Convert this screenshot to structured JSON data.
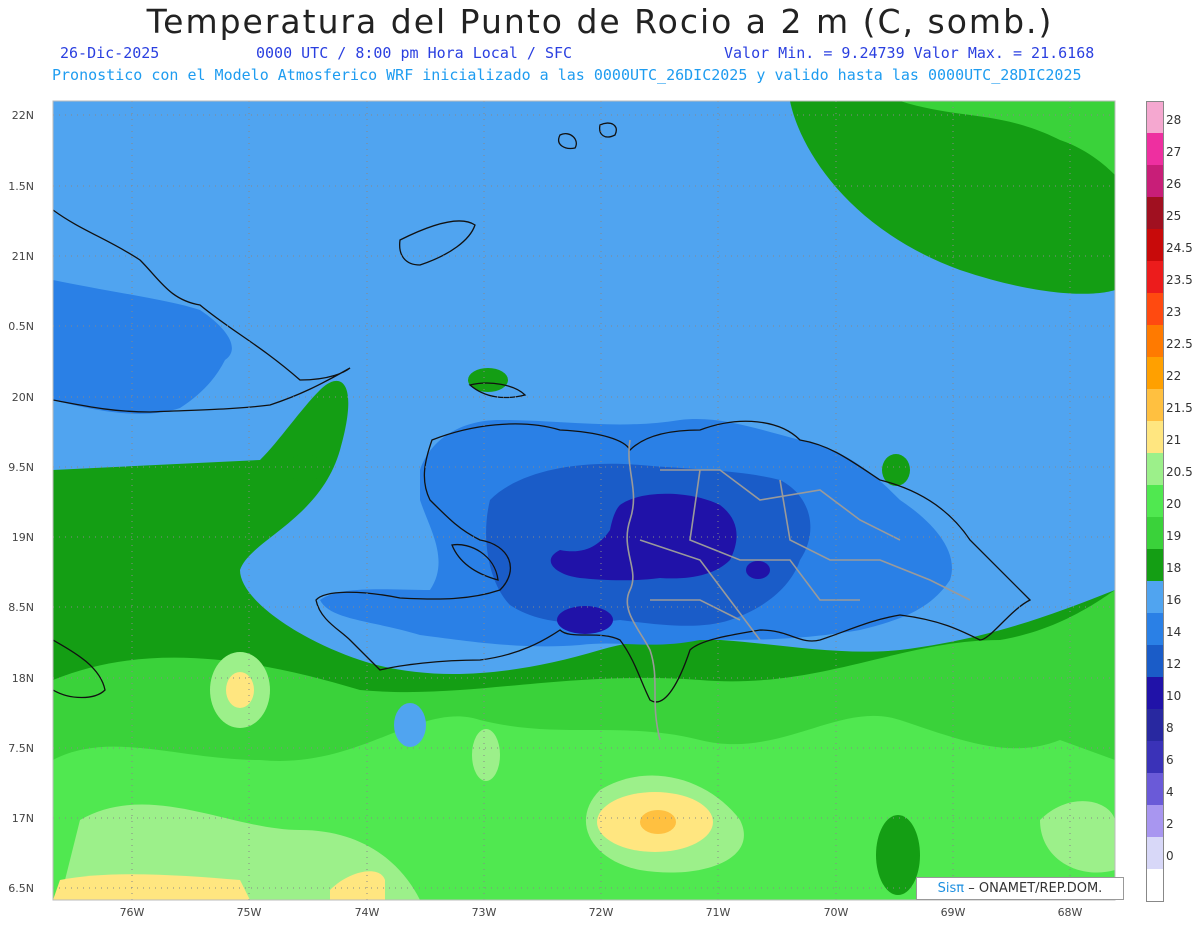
{
  "header": {
    "title": "Temperatura del Punto de Rocio a 2 m (C, somb.)",
    "date": "26-Dic-2025",
    "time": "0000 UTC / 8:00 pm Hora Local / SFC",
    "minmax": "Valor Min. = 9.24739  Valor Max. = 21.6168",
    "forecast": "Pronostico con el Modelo Atmosferico WRF inicializado a las 0000UTC_26DIC2025 y valido hasta las  0000UTC_28DIC2025"
  },
  "axes": {
    "lat_labels": [
      "22N",
      "1.5N",
      "21N",
      "0.5N",
      "20N",
      "9.5N",
      "19N",
      "8.5N",
      "18N",
      "7.5N",
      "17N",
      "6.5N"
    ],
    "lon_labels": [
      "76W",
      "75W",
      "74W",
      "73W",
      "72W",
      "71W",
      "70W",
      "69W",
      "68W"
    ]
  },
  "colorbar": {
    "levels": [
      {
        "label": "28",
        "color": "#f5a8d0"
      },
      {
        "label": "27",
        "color": "#ee2fa0"
      },
      {
        "label": "26",
        "color": "#c81e78"
      },
      {
        "label": "25",
        "color": "#a01020"
      },
      {
        "label": "24.5",
        "color": "#c80a0a"
      },
      {
        "label": "23.5",
        "color": "#ec1c1c"
      },
      {
        "label": "23",
        "color": "#ff4a10"
      },
      {
        "label": "22.5",
        "color": "#ff7a00"
      },
      {
        "label": "22",
        "color": "#ffa000"
      },
      {
        "label": "21.5",
        "color": "#ffc040"
      },
      {
        "label": "21",
        "color": "#ffe680"
      },
      {
        "label": "20.5",
        "color": "#9cf08a"
      },
      {
        "label": "20",
        "color": "#50e850"
      },
      {
        "label": "19",
        "color": "#3ad23a"
      },
      {
        "label": "18",
        "color": "#149e14"
      },
      {
        "label": "16",
        "color": "#50a4f0"
      },
      {
        "label": "14",
        "color": "#2a80e6"
      },
      {
        "label": "12",
        "color": "#1a5cc8"
      },
      {
        "label": "10",
        "color": "#2012a8"
      },
      {
        "label": "8",
        "color": "#2828a0"
      },
      {
        "label": "6",
        "color": "#3a32b8"
      },
      {
        "label": "4",
        "color": "#6a5ad8"
      },
      {
        "label": "2",
        "color": "#a896f0"
      },
      {
        "label": "0",
        "color": "#d8d8f8"
      },
      {
        "label": "",
        "color": "#ffffff"
      }
    ]
  },
  "credit": {
    "brand": "Sisπ",
    "text": "– ONAMET/REP.DOM."
  }
}
